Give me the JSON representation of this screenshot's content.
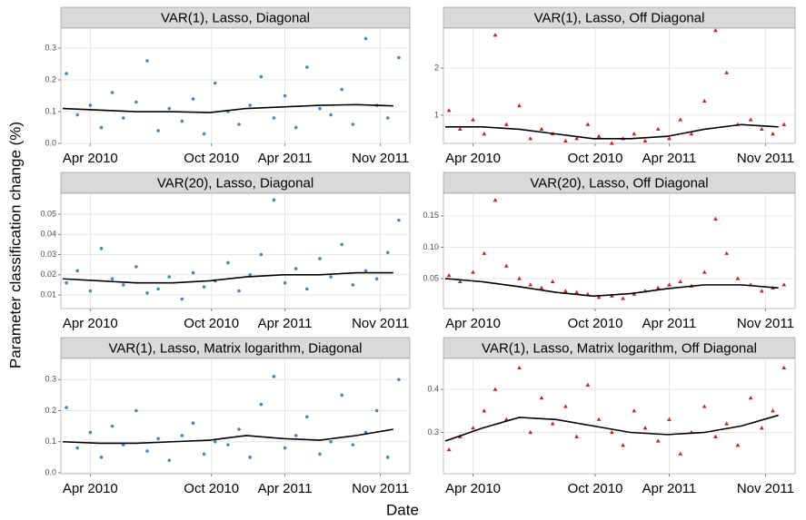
{
  "shared_labels": {
    "x": "Date",
    "y": "Parameter classification change (%)"
  },
  "chart_data": [
    {
      "type": "scatter",
      "title": "VAR(1), Lasso, Diagonal",
      "color": "#4a86b8",
      "marker": "circle",
      "grid": true,
      "xlim": [
        2010.09,
        2011.99
      ],
      "xticks": [
        {
          "value": 2010.25,
          "label": "Apr 2010"
        },
        {
          "value": 2010.91,
          "label": "Oct 2010"
        },
        {
          "value": 2011.31,
          "label": "Apr 2011"
        },
        {
          "value": 2011.83,
          "label": "Nov 2011"
        }
      ],
      "ylim": [
        0,
        0.363
      ],
      "yticks": [
        {
          "value": 0,
          "label": "0.0"
        },
        0.1,
        0.2,
        0.3
      ],
      "x": [
        2010.12,
        2010.18,
        2010.25,
        2010.31,
        2010.37,
        2010.43,
        2010.5,
        2010.56,
        2010.62,
        2010.68,
        2010.75,
        2010.81,
        2010.87,
        2010.93,
        2011.0,
        2011.06,
        2011.12,
        2011.18,
        2011.25,
        2011.31,
        2011.37,
        2011.43,
        2011.5,
        2011.56,
        2011.62,
        2011.68,
        2011.75,
        2011.81,
        2011.87,
        2011.93
      ],
      "values": [
        0.22,
        0.09,
        0.12,
        0.05,
        0.16,
        0.08,
        0.13,
        0.26,
        0.04,
        0.11,
        0.07,
        0.14,
        0.03,
        0.19,
        0.1,
        0.06,
        0.12,
        0.21,
        0.08,
        0.15,
        0.05,
        0.24,
        0.11,
        0.09,
        0.17,
        0.06,
        0.33,
        0.12,
        0.08,
        0.27
      ],
      "smooth": {
        "x": [
          2010.1,
          2010.3,
          2010.5,
          2010.7,
          2010.9,
          2011.1,
          2011.3,
          2011.5,
          2011.7,
          2011.9
        ],
        "values": [
          0.11,
          0.105,
          0.1,
          0.1,
          0.097,
          0.11,
          0.115,
          0.12,
          0.122,
          0.118
        ]
      }
    },
    {
      "type": "scatter",
      "title": "VAR(1), Lasso, Off Diagonal",
      "color": "#c0282a",
      "marker": "triangle",
      "grid": true,
      "xlim": [
        2010.09,
        2011.99
      ],
      "xticks": [
        {
          "value": 2010.25,
          "label": "Apr 2010"
        },
        {
          "value": 2010.91,
          "label": "Oct 2010"
        },
        {
          "value": 2011.31,
          "label": "Apr 2011"
        },
        {
          "value": 2011.83,
          "label": "Nov 2011"
        }
      ],
      "ylim": [
        0.4,
        2.85
      ],
      "yticks": [
        1,
        2
      ],
      "x": [
        2010.12,
        2010.18,
        2010.25,
        2010.31,
        2010.37,
        2010.43,
        2010.5,
        2010.56,
        2010.62,
        2010.68,
        2010.75,
        2010.81,
        2010.87,
        2010.93,
        2011.0,
        2011.06,
        2011.12,
        2011.18,
        2011.25,
        2011.31,
        2011.37,
        2011.43,
        2011.5,
        2011.56,
        2011.62,
        2011.68,
        2011.75,
        2011.81,
        2011.87,
        2011.93
      ],
      "values": [
        1.1,
        0.7,
        0.9,
        0.6,
        2.7,
        0.8,
        1.2,
        0.5,
        0.7,
        0.6,
        0.45,
        0.5,
        0.8,
        0.55,
        0.4,
        0.5,
        0.6,
        0.45,
        0.7,
        0.5,
        0.9,
        0.6,
        1.3,
        2.8,
        1.9,
        0.8,
        0.9,
        0.7,
        0.6,
        0.8
      ],
      "smooth": {
        "x": [
          2010.1,
          2010.3,
          2010.5,
          2010.7,
          2010.9,
          2011.1,
          2011.3,
          2011.5,
          2011.7,
          2011.9
        ],
        "values": [
          0.75,
          0.75,
          0.7,
          0.6,
          0.5,
          0.5,
          0.55,
          0.7,
          0.8,
          0.75
        ]
      }
    },
    {
      "type": "scatter",
      "title": "VAR(20), Lasso, Diagonal",
      "color": "#4a86b8",
      "marker": "circle",
      "grid": true,
      "xlim": [
        2010.09,
        2011.99
      ],
      "xticks": [
        {
          "value": 2010.25,
          "label": "Apr 2010"
        },
        {
          "value": 2010.91,
          "label": "Oct 2010"
        },
        {
          "value": 2011.31,
          "label": "Apr 2011"
        },
        {
          "value": 2011.83,
          "label": "Nov 2011"
        }
      ],
      "ylim": [
        0.0033,
        0.0603
      ],
      "yticks": [
        0.01,
        0.02,
        0.03,
        0.04,
        0.05
      ],
      "x": [
        2010.12,
        2010.18,
        2010.25,
        2010.31,
        2010.37,
        2010.43,
        2010.5,
        2010.56,
        2010.62,
        2010.68,
        2010.75,
        2010.81,
        2010.87,
        2010.93,
        2011.0,
        2011.06,
        2011.12,
        2011.18,
        2011.25,
        2011.31,
        2011.37,
        2011.43,
        2011.5,
        2011.56,
        2011.62,
        2011.68,
        2011.75,
        2011.81,
        2011.87,
        2011.93
      ],
      "values": [
        0.016,
        0.022,
        0.012,
        0.033,
        0.018,
        0.015,
        0.024,
        0.011,
        0.013,
        0.019,
        0.008,
        0.021,
        0.014,
        0.017,
        0.026,
        0.012,
        0.02,
        0.03,
        0.057,
        0.016,
        0.023,
        0.013,
        0.028,
        0.019,
        0.035,
        0.015,
        0.022,
        0.018,
        0.031,
        0.047
      ],
      "smooth": {
        "x": [
          2010.1,
          2010.3,
          2010.5,
          2010.7,
          2010.9,
          2011.1,
          2011.3,
          2011.5,
          2011.7,
          2011.9
        ],
        "values": [
          0.018,
          0.017,
          0.016,
          0.016,
          0.017,
          0.019,
          0.02,
          0.02,
          0.021,
          0.021
        ]
      }
    },
    {
      "type": "scatter",
      "title": "VAR(20), Lasso, Off Diagonal",
      "color": "#c0282a",
      "marker": "triangle",
      "grid": true,
      "xlim": [
        2010.09,
        2011.99
      ],
      "xticks": [
        {
          "value": 2010.25,
          "label": "Apr 2010"
        },
        {
          "value": 2010.91,
          "label": "Oct 2010"
        },
        {
          "value": 2011.31,
          "label": "Apr 2011"
        },
        {
          "value": 2011.83,
          "label": "Nov 2011"
        }
      ],
      "ylim": [
        0.0022,
        0.186
      ],
      "yticks": [
        0.05,
        {
          "value": 0.1,
          "label": "0.10"
        },
        0.15
      ],
      "x": [
        2010.12,
        2010.18,
        2010.25,
        2010.31,
        2010.37,
        2010.43,
        2010.5,
        2010.56,
        2010.62,
        2010.68,
        2010.75,
        2010.81,
        2010.87,
        2010.93,
        2011.0,
        2011.06,
        2011.12,
        2011.18,
        2011.25,
        2011.31,
        2011.37,
        2011.43,
        2011.5,
        2011.56,
        2011.62,
        2011.68,
        2011.75,
        2011.81,
        2011.87,
        2011.93
      ],
      "values": [
        0.055,
        0.045,
        0.06,
        0.09,
        0.175,
        0.07,
        0.05,
        0.04,
        0.035,
        0.045,
        0.03,
        0.028,
        0.025,
        0.02,
        0.022,
        0.018,
        0.025,
        0.03,
        0.035,
        0.04,
        0.045,
        0.038,
        0.06,
        0.145,
        0.09,
        0.05,
        0.04,
        0.03,
        0.035,
        0.04
      ],
      "smooth": {
        "x": [
          2010.1,
          2010.3,
          2010.5,
          2010.7,
          2010.9,
          2011.1,
          2011.3,
          2011.5,
          2011.7,
          2011.9
        ],
        "values": [
          0.05,
          0.045,
          0.037,
          0.028,
          0.022,
          0.026,
          0.034,
          0.04,
          0.04,
          0.035
        ]
      }
    },
    {
      "type": "scatter",
      "title": "VAR(1), Lasso, Matrix logarithm, Diagonal",
      "color": "#4a86b8",
      "marker": "circle",
      "grid": true,
      "xlim": [
        2010.09,
        2011.99
      ],
      "xticks": [
        {
          "value": 2010.25,
          "label": "Apr 2010"
        },
        {
          "value": 2010.91,
          "label": "Oct 2010"
        },
        {
          "value": 2011.31,
          "label": "Apr 2011"
        },
        {
          "value": 2011.83,
          "label": "Nov 2011"
        }
      ],
      "ylim": [
        -0.003,
        0.368
      ],
      "yticks": [
        {
          "value": 0,
          "label": "0.0"
        },
        0.1,
        0.2,
        0.3
      ],
      "x": [
        2010.12,
        2010.18,
        2010.25,
        2010.31,
        2010.37,
        2010.43,
        2010.5,
        2010.56,
        2010.62,
        2010.68,
        2010.75,
        2010.81,
        2010.87,
        2010.93,
        2011.0,
        2011.06,
        2011.12,
        2011.18,
        2011.25,
        2011.31,
        2011.37,
        2011.43,
        2011.5,
        2011.56,
        2011.62,
        2011.68,
        2011.75,
        2011.81,
        2011.87,
        2011.93
      ],
      "values": [
        0.21,
        0.08,
        0.13,
        0.05,
        0.15,
        0.09,
        0.2,
        0.07,
        0.11,
        0.04,
        0.12,
        0.16,
        0.06,
        0.1,
        0.09,
        0.14,
        0.05,
        0.22,
        0.31,
        0.08,
        0.12,
        0.18,
        0.06,
        0.1,
        0.25,
        0.09,
        0.13,
        0.2,
        0.05,
        0.3
      ],
      "smooth": {
        "x": [
          2010.1,
          2010.3,
          2010.5,
          2010.7,
          2010.9,
          2011.1,
          2011.3,
          2011.5,
          2011.7,
          2011.9
        ],
        "values": [
          0.1,
          0.095,
          0.095,
          0.1,
          0.105,
          0.12,
          0.11,
          0.105,
          0.12,
          0.14
        ]
      }
    },
    {
      "type": "scatter",
      "title": "VAR(1), Lasso, Matrix logarithm, Off Diagonal",
      "color": "#c0282a",
      "marker": "triangle",
      "grid": true,
      "xlim": [
        2010.09,
        2011.99
      ],
      "xticks": [
        {
          "value": 2010.25,
          "label": "Apr 2010"
        },
        {
          "value": 2010.91,
          "label": "Oct 2010"
        },
        {
          "value": 2011.31,
          "label": "Apr 2011"
        },
        {
          "value": 2011.83,
          "label": "Nov 2011"
        }
      ],
      "ylim": [
        0.204,
        0.472
      ],
      "yticks": [
        0.3,
        0.4
      ],
      "x": [
        2010.12,
        2010.18,
        2010.25,
        2010.31,
        2010.37,
        2010.43,
        2010.5,
        2010.56,
        2010.62,
        2010.68,
        2010.75,
        2010.81,
        2010.87,
        2010.93,
        2011.0,
        2011.06,
        2011.12,
        2011.18,
        2011.25,
        2011.31,
        2011.37,
        2011.43,
        2011.5,
        2011.56,
        2011.62,
        2011.68,
        2011.75,
        2011.81,
        2011.87,
        2011.93
      ],
      "values": [
        0.26,
        0.29,
        0.31,
        0.35,
        0.4,
        0.33,
        0.45,
        0.3,
        0.38,
        0.32,
        0.36,
        0.29,
        0.41,
        0.33,
        0.3,
        0.27,
        0.35,
        0.31,
        0.28,
        0.33,
        0.25,
        0.3,
        0.36,
        0.29,
        0.32,
        0.27,
        0.38,
        0.31,
        0.35,
        0.45
      ],
      "smooth": {
        "x": [
          2010.1,
          2010.3,
          2010.5,
          2010.7,
          2010.9,
          2011.1,
          2011.3,
          2011.5,
          2011.7,
          2011.9
        ],
        "values": [
          0.28,
          0.31,
          0.335,
          0.33,
          0.315,
          0.3,
          0.295,
          0.3,
          0.315,
          0.34
        ]
      }
    }
  ]
}
